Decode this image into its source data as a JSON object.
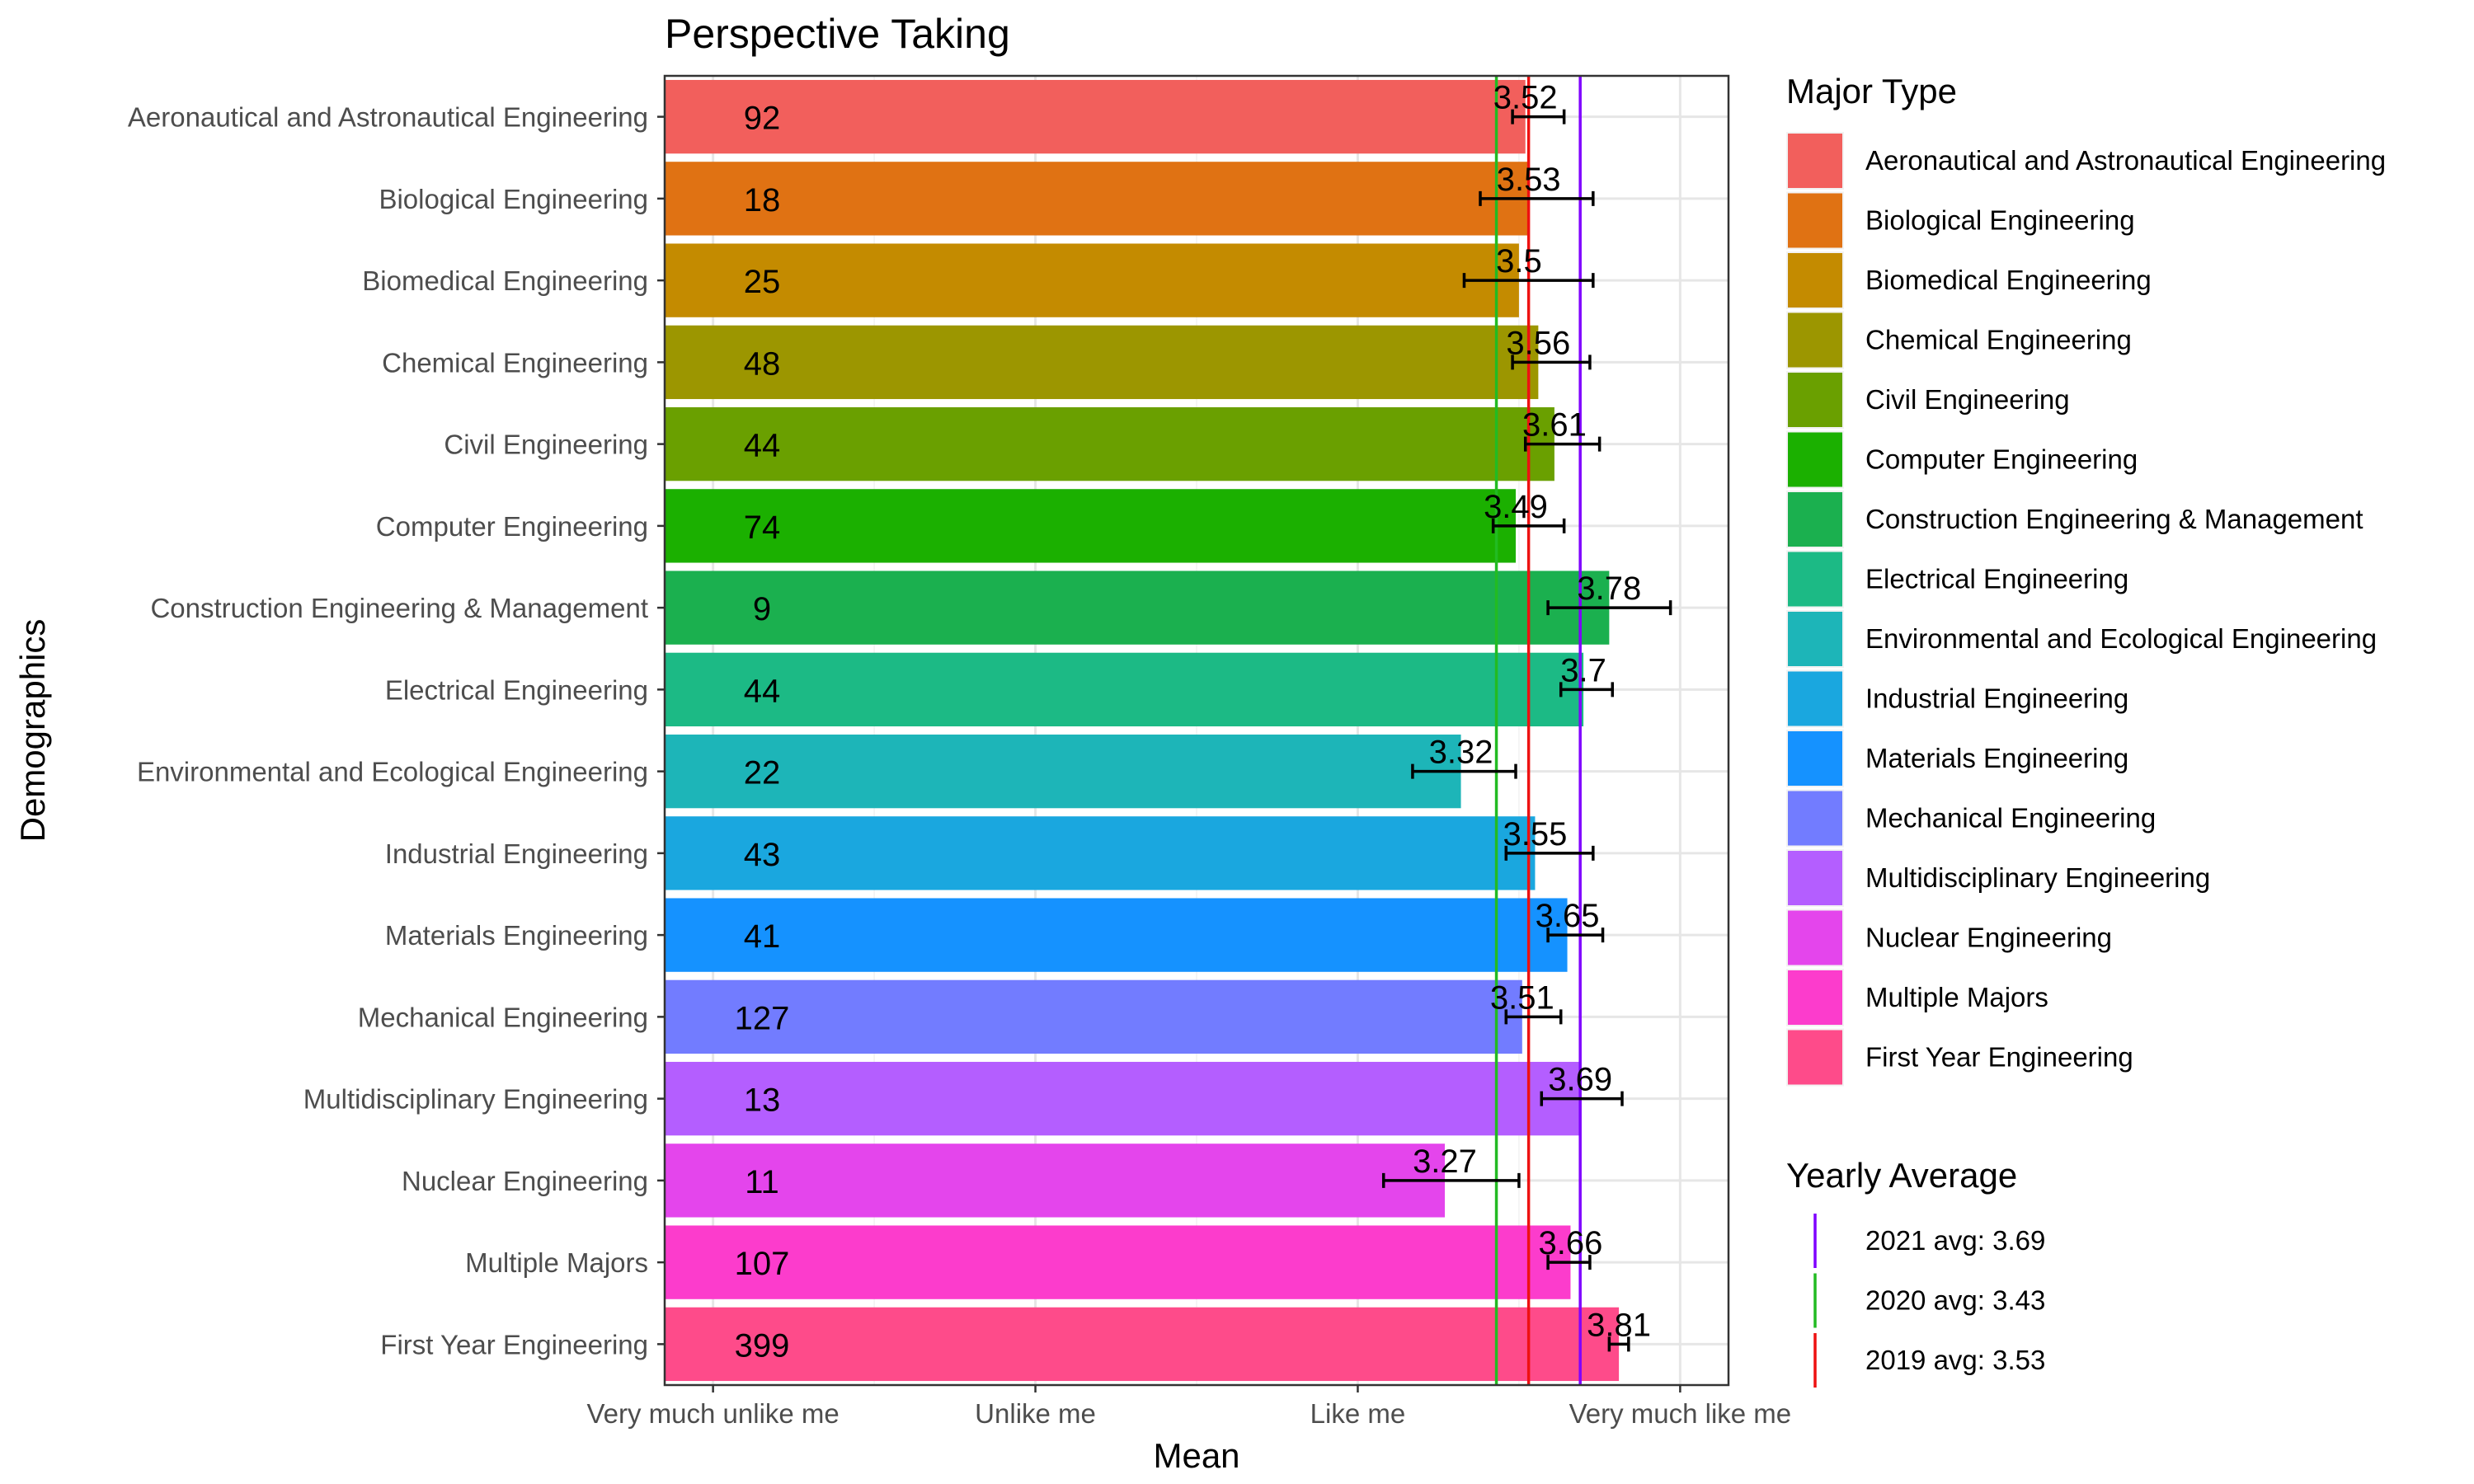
{
  "chart_data": {
    "type": "bar",
    "orientation": "horizontal",
    "title": "Perspective Taking",
    "xlabel": "Mean",
    "ylabel": "Demographics",
    "xlim": [
      0.85,
      4.15
    ],
    "x_ticks": [
      {
        "value": 1,
        "label": "Very much unlike me"
      },
      {
        "value": 2,
        "label": "Unlike me"
      },
      {
        "value": 3,
        "label": "Like me"
      },
      {
        "value": 4,
        "label": "Very much like me"
      }
    ],
    "grid": true,
    "categories": [
      "Aeronautical and Astronautical Engineering",
      "Biological Engineering",
      "Biomedical Engineering",
      "Chemical Engineering",
      "Civil Engineering",
      "Computer Engineering",
      "Construction Engineering & Management",
      "Electrical Engineering",
      "Environmental and Ecological Engineering",
      "Industrial Engineering",
      "Materials Engineering",
      "Mechanical Engineering",
      "Multidisciplinary Engineering",
      "Nuclear Engineering",
      "Multiple Majors",
      "First Year Engineering"
    ],
    "values": [
      3.52,
      3.53,
      3.5,
      3.56,
      3.61,
      3.49,
      3.78,
      3.7,
      3.32,
      3.55,
      3.65,
      3.51,
      3.69,
      3.27,
      3.66,
      3.81
    ],
    "value_labels": [
      "3.52",
      "3.53",
      "3.5",
      "3.56",
      "3.61",
      "3.49",
      "3.78",
      "3.7",
      "3.32",
      "3.55",
      "3.65",
      "3.51",
      "3.69",
      "3.27",
      "3.66",
      "3.81"
    ],
    "counts": [
      "92",
      "18",
      "25",
      "48",
      "44",
      "74",
      "9",
      "44",
      "22",
      "43",
      "41",
      "127",
      "13",
      "11",
      "107",
      "399"
    ],
    "error_low": [
      3.48,
      3.38,
      3.33,
      3.48,
      3.52,
      3.42,
      3.59,
      3.63,
      3.17,
      3.46,
      3.59,
      3.46,
      3.57,
      3.08,
      3.59,
      3.78
    ],
    "error_high": [
      3.64,
      3.73,
      3.73,
      3.72,
      3.75,
      3.64,
      3.97,
      3.79,
      3.49,
      3.73,
      3.76,
      3.63,
      3.82,
      3.5,
      3.72,
      3.84
    ],
    "colors": [
      "#F8766D",
      "#E58700",
      "#C99800",
      "#A3A500",
      "#6BB100",
      "#00BA38",
      "#00BF7D",
      "#00C0AF",
      "#00BCD8",
      "#00B0F6",
      "#619CFF",
      "#B983FF",
      "#E76BF3",
      "#FD61D1",
      "#FF67A4",
      "#FF6C90"
    ],
    "fill_colors": [
      "#F25F5C",
      "#E07213",
      "#C48B00",
      "#9C9600",
      "#6AA000",
      "#1BB000",
      "#1BB04F",
      "#1CBA85",
      "#1DB5B8",
      "#1AA7DF",
      "#1592FF",
      "#727CFF",
      "#B45EFF",
      "#E445EC",
      "#FC3CCC",
      "#FE4B8A"
    ],
    "legend": {
      "title": "Major Type",
      "position": "right",
      "items": [
        "Aeronautical and Astronautical Engineering",
        "Biological Engineering",
        "Biomedical Engineering",
        "Chemical Engineering",
        "Civil Engineering",
        "Computer Engineering",
        "Construction Engineering & Management",
        "Electrical Engineering",
        "Environmental and Ecological Engineering",
        "Industrial Engineering",
        "Materials Engineering",
        "Mechanical Engineering",
        "Multidisciplinary Engineering",
        "Nuclear Engineering",
        "Multiple Majors",
        "First Year Engineering"
      ]
    },
    "reference_lines": {
      "title": "Yearly Average",
      "items": [
        {
          "label": "2021 avg: 3.69",
          "value": 3.69,
          "color": "#7F00FF"
        },
        {
          "label": "2020 avg: 3.43",
          "value": 3.43,
          "color": "#22BB22"
        },
        {
          "label": "2019 avg: 3.53",
          "value": 3.53,
          "color": "#EE1111"
        }
      ]
    }
  }
}
